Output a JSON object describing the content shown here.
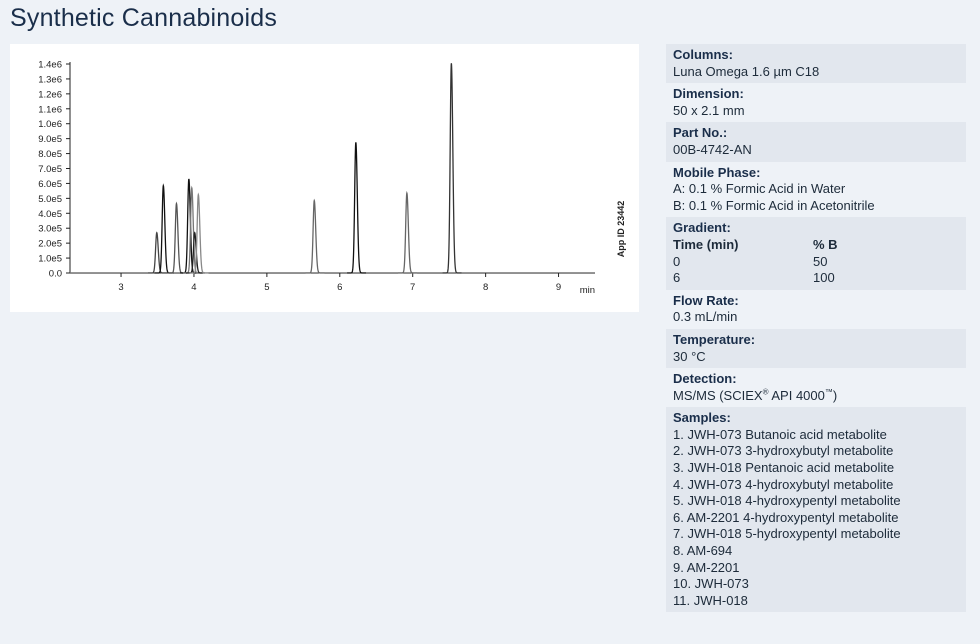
{
  "title": "Synthetic Cannabinoids",
  "chart_data": {
    "type": "line",
    "xlabel": "min",
    "ylabel": "",
    "xlim": [
      2.3,
      9.5
    ],
    "ylim": [
      0,
      1400000.0
    ],
    "x_ticks": [
      3,
      4,
      5,
      6,
      7,
      8,
      9
    ],
    "x_tick_labels": [
      "3",
      "4",
      "5",
      "6",
      "7",
      "8",
      "9"
    ],
    "y_ticks": [
      0,
      100000,
      200000,
      300000,
      400000,
      500000,
      600000,
      700000,
      800000,
      900000,
      1000000,
      1100000,
      1200000,
      1300000,
      1400000
    ],
    "y_tick_labels": [
      "0.0",
      "1.0e5",
      "2.0e5",
      "3.0e5",
      "4.0e5",
      "5.0e5",
      "6.0e5",
      "7.0e5",
      "8.0e5",
      "9.0e5",
      "1.0e6",
      "1.1e6",
      "1.2e6",
      "1.3e6",
      "1.4e6"
    ],
    "side_label": "App ID 23442",
    "peaks": [
      {
        "rt": 3.49,
        "height": 270000,
        "color": "#444444"
      },
      {
        "rt": 3.58,
        "height": 585000,
        "color": "#111111"
      },
      {
        "rt": 3.76,
        "height": 465000,
        "color": "#555555"
      },
      {
        "rt": 3.93,
        "height": 630000,
        "color": "#111111"
      },
      {
        "rt": 3.97,
        "height": 570000,
        "color": "#777777"
      },
      {
        "rt": 4.01,
        "height": 270000,
        "color": "#222222"
      },
      {
        "rt": 4.06,
        "height": 525000,
        "color": "#888888"
      },
      {
        "rt": 5.65,
        "height": 485000,
        "color": "#666666"
      },
      {
        "rt": 6.22,
        "height": 875000,
        "color": "#111111"
      },
      {
        "rt": 6.92,
        "height": 535000,
        "color": "#666666"
      },
      {
        "rt": 7.53,
        "height": 1405000,
        "color": "#333333"
      }
    ]
  },
  "sidebar": {
    "columns_label": "Columns:",
    "columns_value": "Luna Omega 1.6 µm C18",
    "dimension_label": "Dimension:",
    "dimension_value": "50 x 2.1 mm",
    "part_label": "Part No.:",
    "part_value": "00B-4742-AN",
    "mobile_label": "Mobile Phase:",
    "mobile_a": "A: 0.1 % Formic Acid in Water",
    "mobile_b": "B: 0.1 % Formic Acid in Acetonitrile",
    "gradient_label": "Gradient:",
    "gradient_head_time": "Time (min)",
    "gradient_head_b": "% B",
    "gradient_rows": [
      {
        "time": "0",
        "b": "50"
      },
      {
        "time": "6",
        "b": "100"
      }
    ],
    "flow_label": "Flow Rate:",
    "flow_value": "0.3 mL/min",
    "temp_label": "Temperature:",
    "temp_value": "30 °C",
    "detection_label": "Detection:",
    "detection_pre": "MS/MS (SCIEX",
    "detection_reg": "®",
    "detection_mid": " API 4000",
    "detection_tm": "™",
    "detection_post": ")",
    "samples_label": "Samples:",
    "samples": [
      "1. JWH-073 Butanoic acid metabolite",
      "2. JWH-073 3-hydroxybutyl metabolite",
      "3. JWH-018 Pentanoic acid metabolite",
      "4. JWH-073 4-hydroxybutyl metabolite",
      "5. JWH-018 4-hydroxypentyl metabolite",
      "6. AM-2201 4-hydroxypentyl metabolite",
      "7. JWH-018 5-hydroxypentyl metabolite",
      "8. AM-694",
      "9. AM-2201",
      "10. JWH-073",
      "11. JWH-018"
    ]
  }
}
